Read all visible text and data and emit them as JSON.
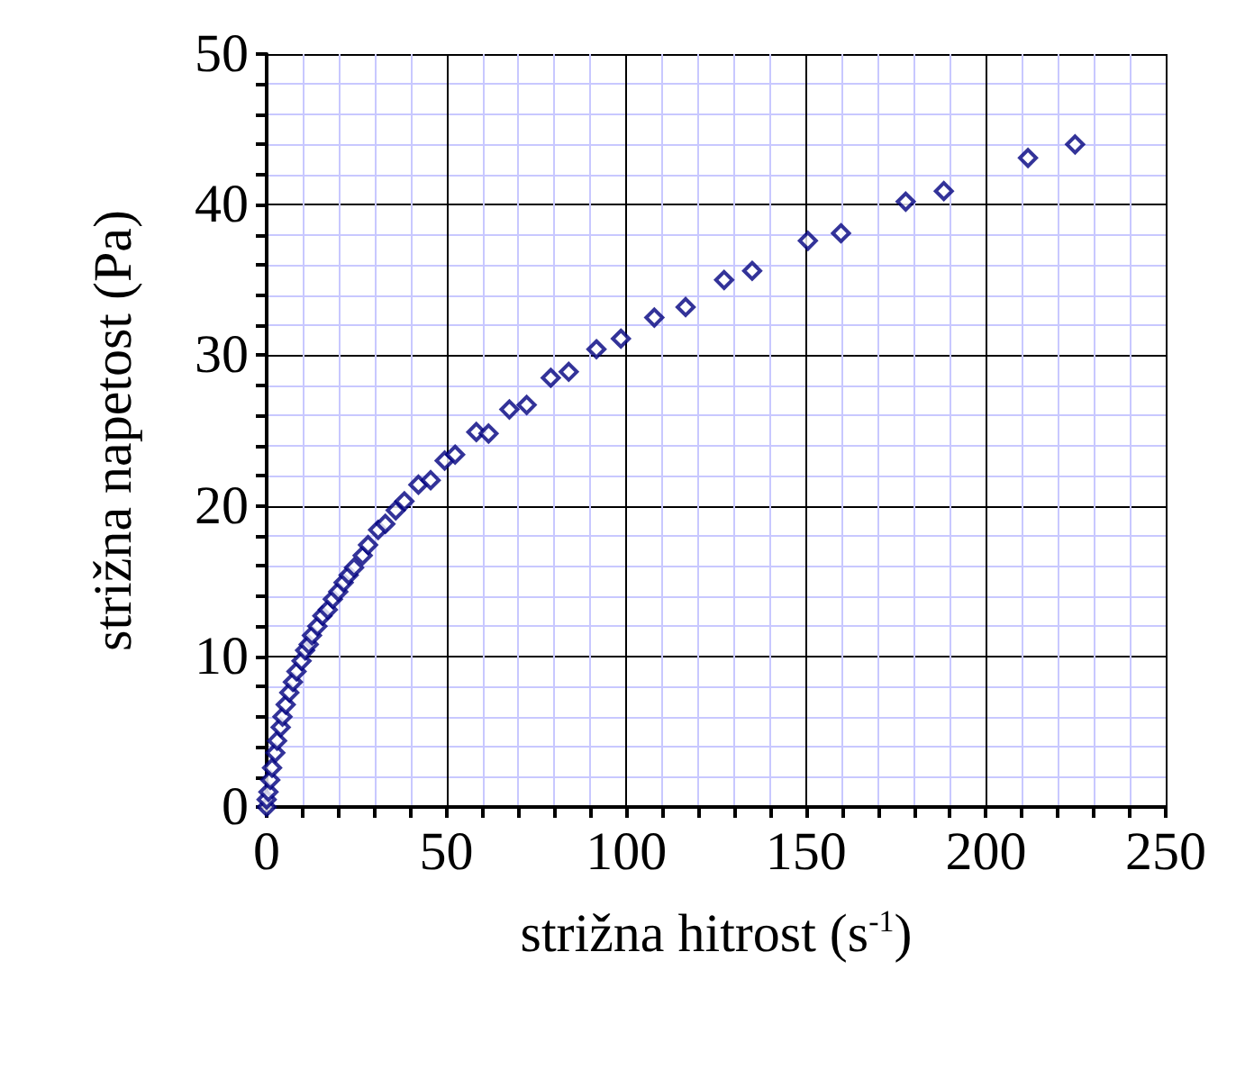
{
  "chart_data": {
    "type": "scatter",
    "xlabel": "strižna hitrost (s$^{-1}$)",
    "ylabel": "strižna napetost (Pa)",
    "xlim": [
      0,
      250
    ],
    "ylim": [
      0,
      50
    ],
    "xticks": [
      0,
      {
        "value": 10,
        "label": null
      },
      {
        "value": 20,
        "label": null
      },
      {
        "value": 30,
        "label": null
      },
      {
        "value": 40,
        "label": null
      },
      50,
      {
        "value": 60,
        "label": null
      },
      {
        "value": 70,
        "label": null
      },
      {
        "value": 80,
        "label": null
      },
      {
        "value": 90,
        "label": null
      },
      100,
      {
        "value": 110,
        "label": null
      },
      {
        "value": 120,
        "label": null
      },
      {
        "value": 130,
        "label": null
      },
      {
        "value": 140,
        "label": null
      },
      150,
      {
        "value": 160,
        "label": null
      },
      {
        "value": 170,
        "label": null
      },
      {
        "value": 180,
        "label": null
      },
      {
        "value": 190,
        "label": null
      },
      200,
      {
        "value": 210,
        "label": null
      },
      {
        "value": 220,
        "label": null
      },
      {
        "value": 230,
        "label": null
      },
      {
        "value": 240,
        "label": null
      },
      250
    ],
    "yticks": [
      0,
      {
        "value": 2,
        "label": null
      },
      {
        "value": 4,
        "label": null
      },
      {
        "value": 6,
        "label": null
      },
      {
        "value": 8,
        "label": null
      },
      10,
      {
        "value": 12,
        "label": null
      },
      {
        "value": 14,
        "label": null
      },
      {
        "value": 16,
        "label": null
      },
      {
        "value": 18,
        "label": null
      },
      20,
      {
        "value": 22,
        "label": null
      },
      {
        "value": 24,
        "label": null
      },
      {
        "value": 26,
        "label": null
      },
      {
        "value": 28,
        "label": null
      },
      30,
      {
        "value": 32,
        "label": null
      },
      {
        "value": 34,
        "label": null
      },
      {
        "value": 36,
        "label": null
      },
      {
        "value": 38,
        "label": null
      },
      40,
      {
        "value": 42,
        "label": null
      },
      {
        "value": 44,
        "label": null
      },
      {
        "value": 46,
        "label": null
      },
      {
        "value": 48,
        "label": null
      },
      50
    ],
    "grid": true,
    "marker": "diamond",
    "series": [
      {
        "color": "#000080",
        "x": [
          0,
          0,
          0.5,
          1,
          1.5,
          2.4,
          2.9,
          3.9,
          4.4,
          5.3,
          6.3,
          7.3,
          8.3,
          9.7,
          10.7,
          11.7,
          12.6,
          14.1,
          15.5,
          17,
          18.4,
          19.9,
          21.4,
          22.8,
          24.3,
          26.7,
          28.2,
          31,
          33,
          35.9,
          38.3,
          42.2,
          45.6,
          49.5,
          52.4,
          58.3,
          61.7,
          67.5,
          72.3,
          79,
          84,
          91.7,
          98.5,
          107.8,
          116.5,
          127.2,
          135,
          150.5,
          159.7,
          177.7,
          188.3,
          211.7,
          224.8
        ],
        "values": [
          0,
          0.5,
          1,
          1.8,
          2.6,
          3.6,
          4.4,
          5.3,
          6,
          6.8,
          7.6,
          8.3,
          9,
          9.7,
          10.4,
          10.8,
          11.4,
          12,
          12.7,
          13.1,
          13.8,
          14.3,
          14.9,
          15.4,
          15.9,
          16.7,
          17.4,
          18.4,
          18.8,
          19.7,
          20.3,
          21.4,
          21.7,
          23,
          23.4,
          24.9,
          24.8,
          26.4,
          26.7,
          28.5,
          28.9,
          30.4,
          31.1,
          32.5,
          33.2,
          35,
          35.6,
          37.6,
          38.1,
          40.2,
          40.9,
          43.1,
          44
        ]
      }
    ]
  }
}
